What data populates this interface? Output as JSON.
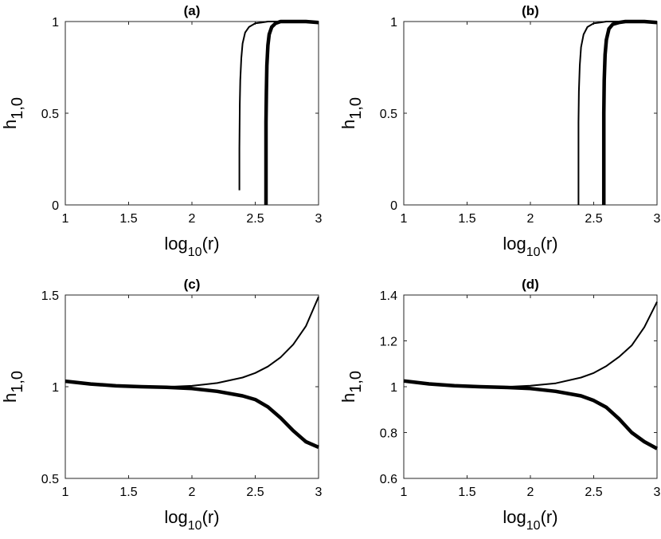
{
  "chart_data": [
    {
      "type": "line",
      "title": "(a)",
      "xlabel_base": "log",
      "xlabel_sub": "10",
      "xlabel_tail": "(r)",
      "ylabel_base": "h",
      "ylabel_sub": "1,0",
      "xlim": [
        1,
        3
      ],
      "ylim": [
        0,
        1
      ],
      "xticks": [
        1,
        1.5,
        2,
        2.5,
        3
      ],
      "xtick_labels": [
        "1",
        "1.5",
        "2",
        "2.5",
        "3"
      ],
      "yticks": [
        0,
        0.5,
        1
      ],
      "ytick_labels": [
        "0",
        "0.5",
        "1"
      ],
      "series": [
        {
          "style": "thin",
          "color": "#000000",
          "x": [
            2.375,
            2.375,
            2.378,
            2.382,
            2.39,
            2.4,
            2.42,
            2.45,
            2.5,
            2.55,
            2.6,
            2.7,
            2.8,
            3.0
          ],
          "y": [
            0.08,
            0.31,
            0.55,
            0.68,
            0.8,
            0.88,
            0.94,
            0.97,
            0.99,
            0.995,
            1.0,
            1.0,
            1.0,
            1.0
          ]
        },
        {
          "style": "thick",
          "color": "#000000",
          "x": [
            2.585,
            2.585,
            2.588,
            2.592,
            2.6,
            2.61,
            2.63,
            2.66,
            2.7,
            2.75,
            2.8,
            2.9,
            3.0
          ],
          "y": [
            0.0,
            0.45,
            0.62,
            0.76,
            0.87,
            0.93,
            0.97,
            0.99,
            1.0,
            1.0,
            1.0,
            1.0,
            0.995
          ]
        }
      ]
    },
    {
      "type": "line",
      "title": "(b)",
      "xlabel_base": "log",
      "xlabel_sub": "10",
      "xlabel_tail": "(r)",
      "ylabel_base": "h",
      "ylabel_sub": "1,0",
      "xlim": [
        1,
        3
      ],
      "ylim": [
        0,
        1
      ],
      "xticks": [
        1,
        1.5,
        2,
        2.5,
        3
      ],
      "xtick_labels": [
        "1",
        "1.5",
        "2",
        "2.5",
        "3"
      ],
      "yticks": [
        0,
        0.5,
        1
      ],
      "ytick_labels": [
        "0",
        "0.5",
        "1"
      ],
      "series": [
        {
          "style": "thin",
          "color": "#000000",
          "x": [
            2.38,
            2.38,
            2.383,
            2.39,
            2.4,
            2.42,
            2.45,
            2.5,
            2.55,
            2.6,
            2.7,
            2.8,
            3.0
          ],
          "y": [
            0.0,
            0.45,
            0.62,
            0.76,
            0.86,
            0.93,
            0.97,
            0.99,
            0.995,
            1.0,
            1.0,
            1.0,
            1.0
          ]
        },
        {
          "style": "thick",
          "color": "#000000",
          "x": [
            2.58,
            2.58,
            2.583,
            2.59,
            2.6,
            2.62,
            2.65,
            2.7,
            2.75,
            2.8,
            2.9,
            3.0
          ],
          "y": [
            0.0,
            0.5,
            0.68,
            0.82,
            0.9,
            0.96,
            0.985,
            0.995,
            1.0,
            1.0,
            1.0,
            0.995
          ]
        }
      ]
    },
    {
      "type": "line",
      "title": "(c)",
      "xlabel_base": "log",
      "xlabel_sub": "10",
      "xlabel_tail": "(r)",
      "ylabel_base": "h",
      "ylabel_sub": "1,0",
      "xlim": [
        1,
        3
      ],
      "ylim": [
        0.5,
        1.5
      ],
      "xticks": [
        1,
        1.5,
        2,
        2.5,
        3
      ],
      "xtick_labels": [
        "1",
        "1.5",
        "2",
        "2.5",
        "3"
      ],
      "yticks": [
        0.5,
        1,
        1.5
      ],
      "ytick_labels": [
        "0.5",
        "1",
        "1.5"
      ],
      "series": [
        {
          "style": "thin",
          "color": "#000000",
          "x": [
            1.0,
            1.2,
            1.4,
            1.6,
            1.8,
            2.0,
            2.2,
            2.4,
            2.5,
            2.6,
            2.7,
            2.8,
            2.9,
            3.0
          ],
          "y": [
            1.03,
            1.015,
            1.005,
            1.0,
            0.999,
            1.005,
            1.02,
            1.05,
            1.075,
            1.11,
            1.16,
            1.23,
            1.33,
            1.49
          ]
        },
        {
          "style": "thick",
          "color": "#000000",
          "x": [
            1.0,
            1.2,
            1.4,
            1.6,
            1.8,
            2.0,
            2.2,
            2.4,
            2.5,
            2.6,
            2.7,
            2.8,
            2.9,
            3.0
          ],
          "y": [
            1.03,
            1.015,
            1.005,
            1.0,
            0.997,
            0.99,
            0.975,
            0.95,
            0.93,
            0.89,
            0.83,
            0.76,
            0.7,
            0.67
          ]
        }
      ]
    },
    {
      "type": "line",
      "title": "(d)",
      "xlabel_base": "log",
      "xlabel_sub": "10",
      "xlabel_tail": "(r)",
      "ylabel_base": "h",
      "ylabel_sub": "1,0",
      "xlim": [
        1,
        3
      ],
      "ylim": [
        0.6,
        1.4
      ],
      "xticks": [
        1,
        1.5,
        2,
        2.5,
        3
      ],
      "xtick_labels": [
        "1",
        "1.5",
        "2",
        "2.5",
        "3"
      ],
      "yticks": [
        0.6,
        0.8,
        1,
        1.2,
        1.4
      ],
      "ytick_labels": [
        "0.6",
        "0.8",
        "1",
        "1.2",
        "1.4"
      ],
      "series": [
        {
          "style": "thin",
          "color": "#000000",
          "x": [
            1.0,
            1.2,
            1.4,
            1.6,
            1.8,
            2.0,
            2.2,
            2.4,
            2.5,
            2.6,
            2.7,
            2.8,
            2.9,
            3.0
          ],
          "y": [
            1.025,
            1.012,
            1.004,
            1.0,
            0.999,
            1.004,
            1.015,
            1.04,
            1.06,
            1.09,
            1.13,
            1.18,
            1.26,
            1.37
          ]
        },
        {
          "style": "thick",
          "color": "#000000",
          "x": [
            1.0,
            1.2,
            1.4,
            1.6,
            1.8,
            2.0,
            2.2,
            2.4,
            2.5,
            2.6,
            2.7,
            2.8,
            2.9,
            3.0
          ],
          "y": [
            1.025,
            1.012,
            1.004,
            1.0,
            0.997,
            0.992,
            0.98,
            0.96,
            0.94,
            0.91,
            0.86,
            0.8,
            0.76,
            0.73
          ]
        }
      ]
    }
  ]
}
